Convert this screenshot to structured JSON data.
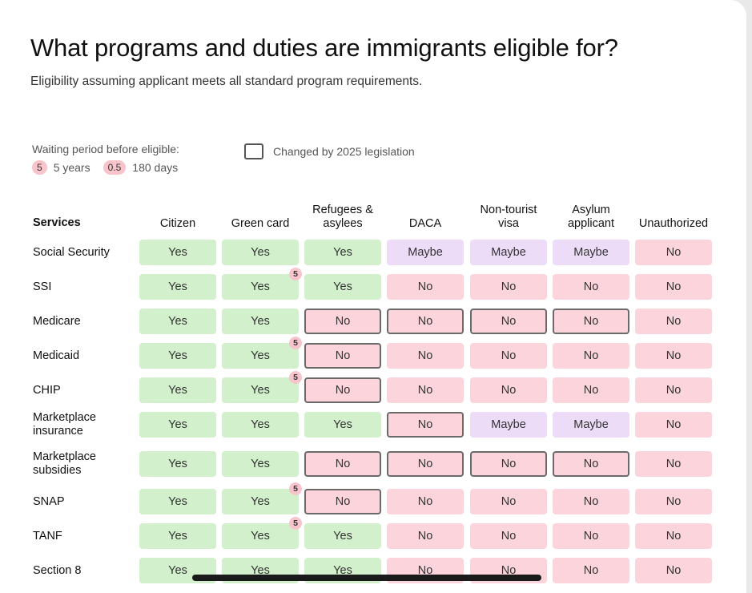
{
  "title": "What programs and duties are immigrants eligible for?",
  "subtitle": "Eligibility assuming applicant meets all standard program requirements.",
  "legend": {
    "waiting_label": "Waiting period before eligible:",
    "items": [
      {
        "badge": "5",
        "text": "5 years"
      },
      {
        "badge": "0.5",
        "text": "180 days"
      }
    ],
    "changed_label": "Changed by 2025 legislation"
  },
  "table": {
    "services_header": "Services",
    "columns": [
      "Citizen",
      "Green card",
      "Refugees &\nasylees",
      "DACA",
      "Non-tourist\nvisa",
      "Asylum\napplicant",
      "Unauthorized"
    ],
    "rows": [
      {
        "label": "Social Security",
        "cells": [
          {
            "v": "Yes"
          },
          {
            "v": "Yes"
          },
          {
            "v": "Yes"
          },
          {
            "v": "Maybe"
          },
          {
            "v": "Maybe"
          },
          {
            "v": "Maybe"
          },
          {
            "v": "No"
          }
        ]
      },
      {
        "label": "SSI",
        "cells": [
          {
            "v": "Yes"
          },
          {
            "v": "Yes",
            "wait": "5"
          },
          {
            "v": "Yes"
          },
          {
            "v": "No"
          },
          {
            "v": "No"
          },
          {
            "v": "No"
          },
          {
            "v": "No"
          }
        ]
      },
      {
        "label": "Medicare",
        "cells": [
          {
            "v": "Yes"
          },
          {
            "v": "Yes"
          },
          {
            "v": "No",
            "changed": true
          },
          {
            "v": "No",
            "changed": true
          },
          {
            "v": "No",
            "changed": true
          },
          {
            "v": "No",
            "changed": true
          },
          {
            "v": "No"
          }
        ]
      },
      {
        "label": "Medicaid",
        "cells": [
          {
            "v": "Yes"
          },
          {
            "v": "Yes",
            "wait": "5"
          },
          {
            "v": "No",
            "changed": true
          },
          {
            "v": "No"
          },
          {
            "v": "No"
          },
          {
            "v": "No"
          },
          {
            "v": "No"
          }
        ]
      },
      {
        "label": "CHIP",
        "cells": [
          {
            "v": "Yes"
          },
          {
            "v": "Yes",
            "wait": "5"
          },
          {
            "v": "No",
            "changed": true
          },
          {
            "v": "No"
          },
          {
            "v": "No"
          },
          {
            "v": "No"
          },
          {
            "v": "No"
          }
        ]
      },
      {
        "label": "Marketplace\ninsurance",
        "cells": [
          {
            "v": "Yes"
          },
          {
            "v": "Yes"
          },
          {
            "v": "Yes"
          },
          {
            "v": "No",
            "changed": true
          },
          {
            "v": "Maybe"
          },
          {
            "v": "Maybe"
          },
          {
            "v": "No"
          }
        ]
      },
      {
        "label": "Marketplace\nsubsidies",
        "cells": [
          {
            "v": "Yes"
          },
          {
            "v": "Yes"
          },
          {
            "v": "No",
            "changed": true
          },
          {
            "v": "No",
            "changed": true
          },
          {
            "v": "No",
            "changed": true
          },
          {
            "v": "No",
            "changed": true
          },
          {
            "v": "No"
          }
        ]
      },
      {
        "label": "SNAP",
        "cells": [
          {
            "v": "Yes"
          },
          {
            "v": "Yes",
            "wait": "5"
          },
          {
            "v": "No",
            "changed": true
          },
          {
            "v": "No"
          },
          {
            "v": "No"
          },
          {
            "v": "No"
          },
          {
            "v": "No"
          }
        ]
      },
      {
        "label": "TANF",
        "cells": [
          {
            "v": "Yes"
          },
          {
            "v": "Yes",
            "wait": "5"
          },
          {
            "v": "Yes"
          },
          {
            "v": "No"
          },
          {
            "v": "No"
          },
          {
            "v": "No"
          },
          {
            "v": "No"
          }
        ]
      },
      {
        "label": "Section 8",
        "cells": [
          {
            "v": "Yes"
          },
          {
            "v": "Yes"
          },
          {
            "v": "Yes"
          },
          {
            "v": "No"
          },
          {
            "v": "No"
          },
          {
            "v": "No"
          },
          {
            "v": "No"
          }
        ]
      }
    ]
  },
  "colors": {
    "yes": "#d2f0cc",
    "no": "#fcd5dc",
    "maybe": "#ecdcf8",
    "wait_badge": "#f7c4cc"
  }
}
